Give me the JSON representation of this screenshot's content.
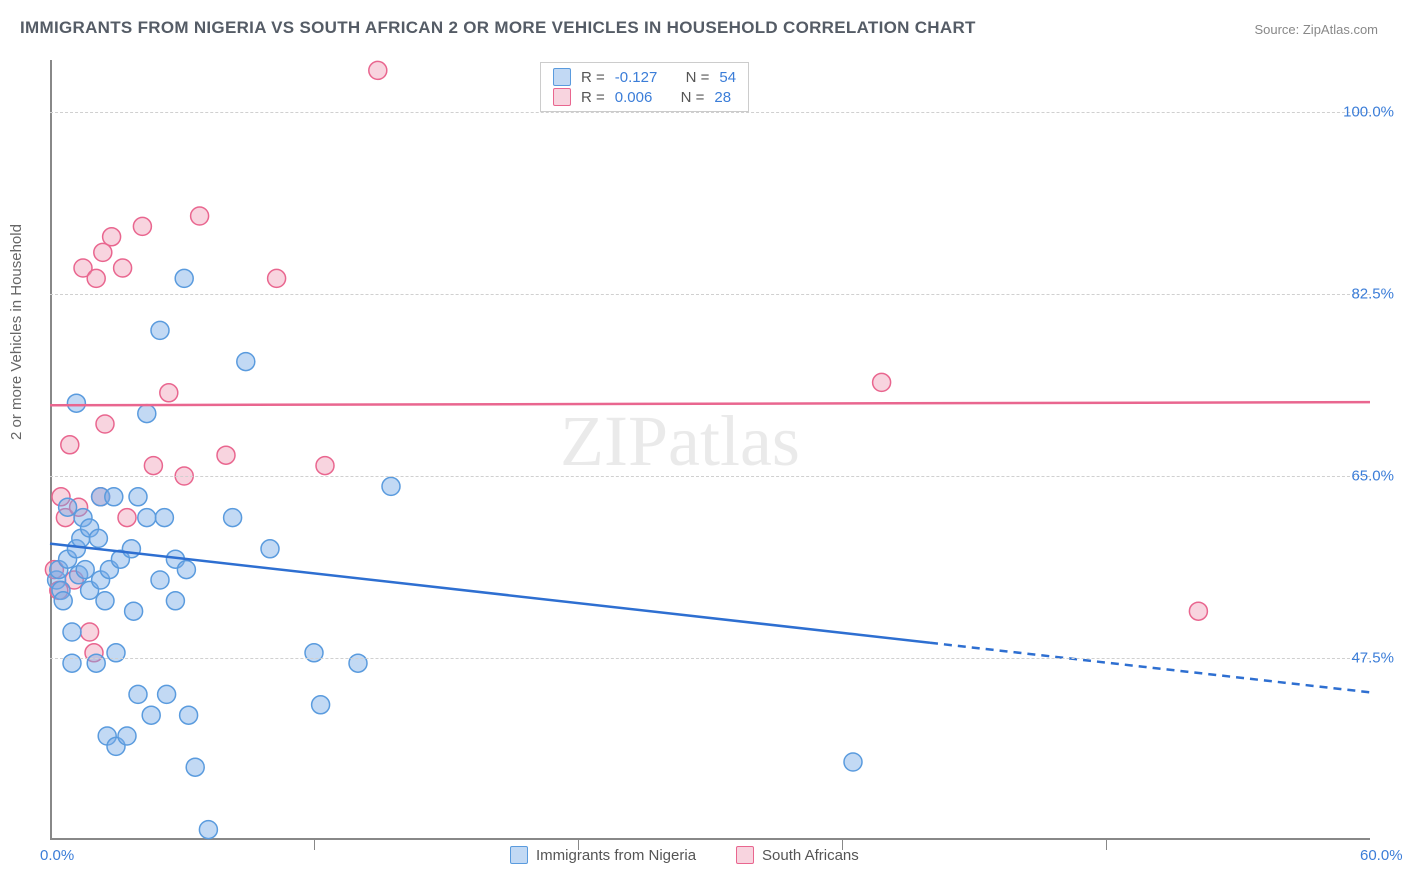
{
  "title": "IMMIGRANTS FROM NIGERIA VS SOUTH AFRICAN 2 OR MORE VEHICLES IN HOUSEHOLD CORRELATION CHART",
  "source": "Source: ZipAtlas.com",
  "y_axis_label": "2 or more Vehicles in Household",
  "watermark": "ZIPatlas",
  "chart": {
    "type": "scatter",
    "background_color": "#ffffff",
    "grid_color": "#d0d0d0",
    "axis_color": "#888888",
    "tick_label_color": "#3b7dd8",
    "text_color": "#666666",
    "xlim": [
      0,
      60
    ],
    "ylim": [
      30,
      105
    ],
    "x_ticks": [
      {
        "pos": 0.0,
        "label": "0.0%"
      },
      {
        "pos": 60.0,
        "label": "60.0%"
      }
    ],
    "x_tick_marks": [
      12,
      24,
      36,
      48
    ],
    "y_ticks": [
      {
        "pos": 47.5,
        "label": "47.5%"
      },
      {
        "pos": 65.0,
        "label": "65.0%"
      },
      {
        "pos": 82.5,
        "label": "82.5%"
      },
      {
        "pos": 100.0,
        "label": "100.0%"
      }
    ],
    "series": [
      {
        "name": "Immigrants from Nigeria",
        "key": "nigeria",
        "point_fill": "rgba(120,170,230,0.45)",
        "point_stroke": "#5a9bde",
        "line_color": "#2e6fd1",
        "line_width": 2.5,
        "R": "-0.127",
        "N": "54",
        "trend": {
          "x1": 0,
          "y1": 58.5,
          "x2": 40,
          "y2": 49.0,
          "solid_extent": 40,
          "x_end": 60,
          "y_end": 44.2
        },
        "points": [
          [
            0.3,
            55
          ],
          [
            0.4,
            56
          ],
          [
            0.5,
            54
          ],
          [
            0.6,
            53
          ],
          [
            0.8,
            57
          ],
          [
            0.8,
            62
          ],
          [
            1.0,
            47
          ],
          [
            1.0,
            50
          ],
          [
            1.2,
            58
          ],
          [
            1.2,
            72
          ],
          [
            1.3,
            55.5
          ],
          [
            1.4,
            59
          ],
          [
            1.5,
            61
          ],
          [
            1.6,
            56
          ],
          [
            1.8,
            54
          ],
          [
            1.8,
            60
          ],
          [
            2.1,
            47
          ],
          [
            2.2,
            59
          ],
          [
            2.3,
            55
          ],
          [
            2.3,
            63
          ],
          [
            2.5,
            53
          ],
          [
            2.6,
            40
          ],
          [
            2.7,
            56
          ],
          [
            2.9,
            63
          ],
          [
            3.0,
            39
          ],
          [
            3.0,
            48
          ],
          [
            3.2,
            57
          ],
          [
            3.5,
            40
          ],
          [
            3.7,
            58
          ],
          [
            3.8,
            52
          ],
          [
            4.0,
            63
          ],
          [
            4.0,
            44
          ],
          [
            4.4,
            61
          ],
          [
            4.4,
            71
          ],
          [
            4.6,
            42
          ],
          [
            5.0,
            79
          ],
          [
            5.0,
            55
          ],
          [
            5.2,
            61
          ],
          [
            5.3,
            44
          ],
          [
            5.7,
            53
          ],
          [
            5.7,
            57
          ],
          [
            6.1,
            84
          ],
          [
            6.2,
            56
          ],
          [
            6.3,
            42
          ],
          [
            6.6,
            37
          ],
          [
            7.2,
            31
          ],
          [
            8.3,
            61
          ],
          [
            8.9,
            76
          ],
          [
            10.0,
            58
          ],
          [
            12.0,
            48
          ],
          [
            12.3,
            43
          ],
          [
            14.0,
            47
          ],
          [
            15.5,
            64
          ],
          [
            36.5,
            37.5
          ]
        ]
      },
      {
        "name": "South Africans",
        "key": "south_africa",
        "point_fill": "rgba(240,160,185,0.45)",
        "point_stroke": "#e9668f",
        "line_color": "#e9668f",
        "line_width": 2.5,
        "R": "0.006",
        "N": "28",
        "trend": {
          "x1": 0,
          "y1": 71.8,
          "x2": 60,
          "y2": 72.1,
          "solid_extent": 60,
          "x_end": 60,
          "y_end": 72.1
        },
        "points": [
          [
            0.2,
            56
          ],
          [
            0.4,
            54
          ],
          [
            0.5,
            63
          ],
          [
            0.7,
            61
          ],
          [
            0.9,
            68
          ],
          [
            1.1,
            55
          ],
          [
            1.3,
            62
          ],
          [
            1.5,
            85
          ],
          [
            1.8,
            50
          ],
          [
            2.0,
            48
          ],
          [
            2.1,
            84
          ],
          [
            2.3,
            63
          ],
          [
            2.5,
            70
          ],
          [
            2.8,
            88
          ],
          [
            3.3,
            85
          ],
          [
            3.5,
            61
          ],
          [
            4.2,
            89
          ],
          [
            4.7,
            66
          ],
          [
            5.4,
            73
          ],
          [
            6.1,
            65
          ],
          [
            6.8,
            90
          ],
          [
            8.0,
            67
          ],
          [
            10.3,
            84
          ],
          [
            12.5,
            66
          ],
          [
            14.9,
            104
          ],
          [
            37.8,
            74
          ],
          [
            52.2,
            52
          ],
          [
            2.4,
            86.5
          ]
        ]
      }
    ],
    "marker_radius": 9,
    "marker_stroke_width": 1.5
  },
  "legend_bottom": [
    {
      "swatch": "blue",
      "label": "Immigrants from Nigeria"
    },
    {
      "swatch": "pink",
      "label": "South Africans"
    }
  ],
  "legend_stats_labels": {
    "R": "R =",
    "N": "N ="
  }
}
